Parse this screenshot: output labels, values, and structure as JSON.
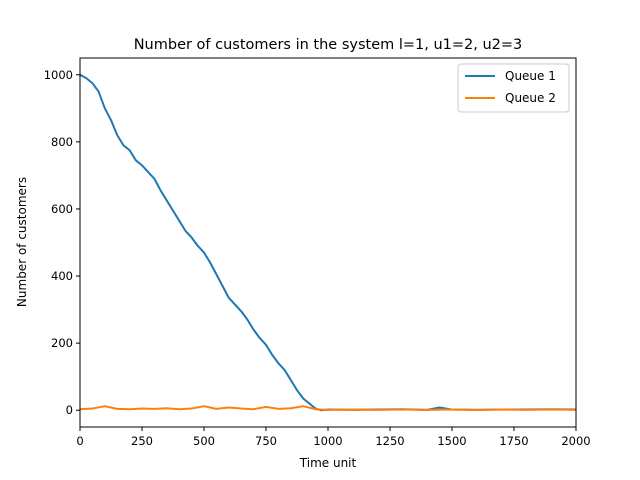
{
  "chart_data": {
    "type": "line",
    "title": "Number of customers in the system l=1, u1=2, u2=3",
    "xlabel": "Time unit",
    "ylabel": "Number of customers",
    "xlim": [
      0,
      2000
    ],
    "ylim": [
      -50,
      1050
    ],
    "xticks": [
      0,
      250,
      500,
      750,
      1000,
      1250,
      1500,
      1750,
      2000
    ],
    "yticks": [
      0,
      200,
      400,
      600,
      800,
      1000
    ],
    "legend_position": "top-right",
    "grid": false,
    "series": [
      {
        "name": "Queue 1",
        "color": "#1f77b4",
        "x": [
          0,
          25,
          50,
          75,
          100,
          125,
          150,
          175,
          200,
          225,
          250,
          275,
          300,
          325,
          350,
          375,
          400,
          425,
          450,
          475,
          500,
          525,
          550,
          575,
          600,
          625,
          650,
          675,
          700,
          725,
          750,
          775,
          800,
          825,
          850,
          875,
          900,
          925,
          950,
          970,
          1000,
          1100,
          1200,
          1300,
          1400,
          1450,
          1500,
          1600,
          1700,
          1800,
          1900,
          2000
        ],
        "values": [
          1000,
          990,
          975,
          950,
          900,
          865,
          820,
          790,
          775,
          745,
          730,
          710,
          690,
          655,
          625,
          595,
          565,
          535,
          515,
          490,
          470,
          440,
          405,
          370,
          335,
          315,
          295,
          270,
          240,
          215,
          195,
          165,
          140,
          120,
          90,
          60,
          35,
          20,
          5,
          0,
          2,
          1,
          2,
          3,
          1,
          8,
          2,
          1,
          2,
          2,
          3,
          2
        ]
      },
      {
        "name": "Queue 2",
        "color": "#ff7f0e",
        "x": [
          0,
          50,
          100,
          150,
          200,
          250,
          300,
          350,
          400,
          450,
          500,
          550,
          600,
          650,
          700,
          750,
          800,
          850,
          900,
          950,
          1000,
          1100,
          1200,
          1300,
          1400,
          1500,
          1600,
          1700,
          1800,
          1900,
          2000
        ],
        "values": [
          3,
          5,
          12,
          4,
          3,
          5,
          4,
          6,
          3,
          5,
          12,
          4,
          8,
          5,
          3,
          10,
          4,
          6,
          12,
          3,
          1,
          2,
          1,
          2,
          1,
          2,
          1,
          2,
          1,
          2,
          1
        ]
      }
    ]
  }
}
